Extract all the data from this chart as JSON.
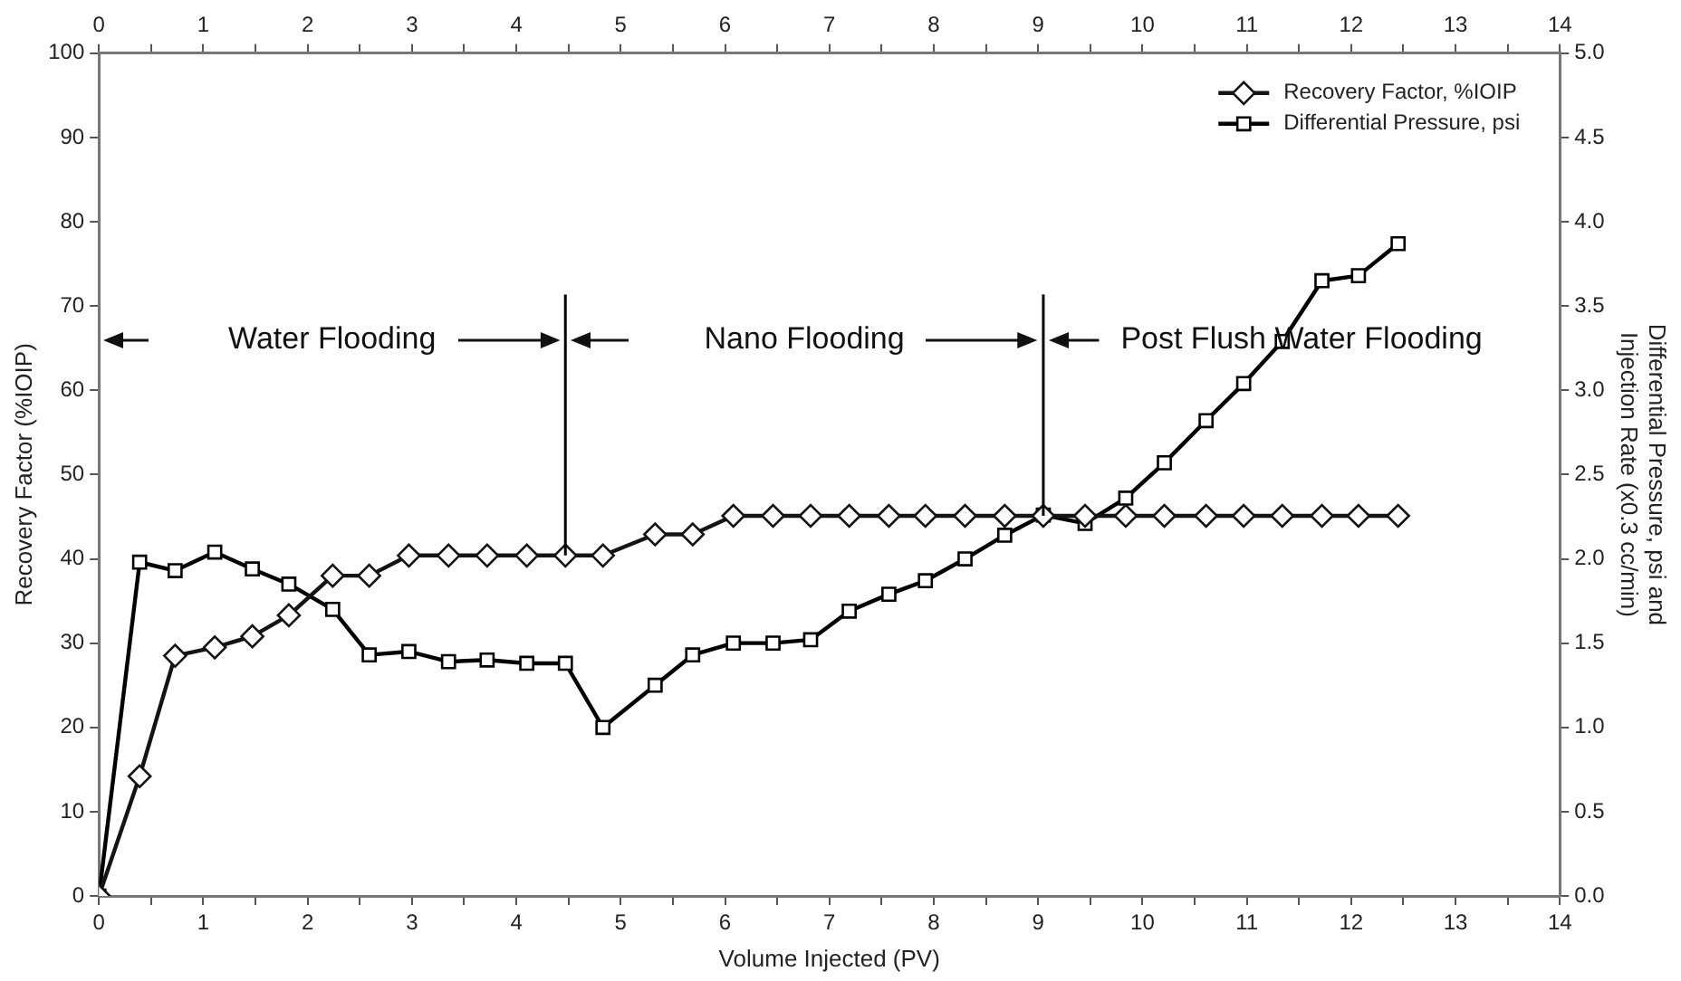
{
  "chart_data": {
    "type": "line",
    "xlabel": "Volume Injected (PV)",
    "ylabel": "Recovery Factor (%IOIP)",
    "y2label": "Differential Pressure, psi and\nInjection Rate (x0.3 cc/min)",
    "xlim": [
      0,
      14
    ],
    "xticks": [
      0,
      {
        "value": 0.5,
        "label": null
      },
      1,
      {
        "value": 1.5,
        "label": null
      },
      2,
      {
        "value": 2.5,
        "label": null
      },
      3,
      {
        "value": 3.5,
        "label": null
      },
      4,
      {
        "value": 4.5,
        "label": null
      },
      5,
      {
        "value": 5.5,
        "label": null
      },
      6,
      {
        "value": 6.5,
        "label": null
      },
      7,
      {
        "value": 7.5,
        "label": null
      },
      8,
      {
        "value": 8.5,
        "label": null
      },
      9,
      {
        "value": 9.5,
        "label": null
      },
      10,
      {
        "value": 10.5,
        "label": null
      },
      11,
      {
        "value": 11.5,
        "label": null
      },
      12,
      {
        "value": 12.5,
        "label": null
      },
      13,
      {
        "value": 13.5,
        "label": null
      },
      14
    ],
    "x2lim": [
      0,
      14
    ],
    "x2ticks": [
      0,
      {
        "value": 0.5,
        "label": null
      },
      1,
      {
        "value": 1.5,
        "label": null
      },
      2,
      {
        "value": 2.5,
        "label": null
      },
      3,
      {
        "value": 3.5,
        "label": null
      },
      4,
      {
        "value": 4.5,
        "label": null
      },
      5,
      {
        "value": 5.5,
        "label": null
      },
      6,
      {
        "value": 6.5,
        "label": null
      },
      7,
      {
        "value": 7.5,
        "label": null
      },
      8,
      {
        "value": 8.5,
        "label": null
      },
      9,
      {
        "value": 9.5,
        "label": null
      },
      10,
      {
        "value": 10.5,
        "label": null
      },
      11,
      {
        "value": 11.5,
        "label": null
      },
      12,
      {
        "value": 12.5,
        "label": null
      },
      13,
      {
        "value": 13.5,
        "label": null
      },
      14
    ],
    "ylim": [
      0,
      100
    ],
    "yticks": [
      0,
      10,
      20,
      30,
      40,
      50,
      60,
      70,
      80,
      90,
      100
    ],
    "y2lim": [
      0,
      5
    ],
    "y2ticks": [
      {
        "value": 0,
        "label": "0.0"
      },
      {
        "value": 0.5,
        "label": "0.5"
      },
      {
        "value": 1,
        "label": "1.0"
      },
      {
        "value": 1.5,
        "label": "1.5"
      },
      {
        "value": 2,
        "label": "2.0"
      },
      {
        "value": 2.5,
        "label": "2.5"
      },
      {
        "value": 3,
        "label": "3.0"
      },
      {
        "value": 3.5,
        "label": "3.5"
      },
      {
        "value": 4,
        "label": "4.0"
      },
      {
        "value": 4.5,
        "label": "4.5"
      },
      {
        "value": 5,
        "label": "5.0"
      }
    ],
    "x": [
      0,
      0.39,
      0.73,
      1.11,
      1.47,
      1.82,
      2.24,
      2.59,
      2.97,
      3.35,
      3.72,
      4.1,
      4.47,
      4.83,
      5.33,
      5.69,
      6.08,
      6.46,
      6.82,
      7.19,
      7.57,
      7.92,
      8.3,
      8.68,
      9.05,
      9.45,
      9.84,
      10.21,
      10.61,
      10.97,
      11.34,
      11.72,
      12.07,
      12.45
    ],
    "series": [
      {
        "name": "Recovery Factor, %IOIP",
        "color": "#141414",
        "marker": "diamond",
        "values": [
          0,
          14.2,
          28.5,
          29.5,
          30.8,
          33.3,
          38.0,
          38.0,
          40.4,
          40.4,
          40.4,
          40.4,
          40.4,
          40.4,
          42.9,
          42.9,
          45.1,
          45.1,
          45.1,
          45.1,
          45.1,
          45.1,
          45.1,
          45.1,
          45.1,
          45.1,
          45.1,
          45.1,
          45.1,
          45.1,
          45.1,
          45.1,
          45.1,
          45.1
        ]
      },
      {
        "name": "Differential Pressure, psi",
        "color": "#000000",
        "marker": "square",
        "axis": "y2",
        "values": [
          0,
          1.98,
          1.93,
          2.04,
          1.94,
          1.85,
          1.7,
          1.43,
          1.45,
          1.39,
          1.4,
          1.38,
          1.38,
          1.0,
          1.25,
          1.43,
          1.5,
          1.5,
          1.52,
          1.69,
          1.79,
          1.87,
          2.0,
          2.14,
          2.26,
          2.21,
          2.36,
          2.57,
          2.82,
          3.04,
          3.29,
          3.65,
          3.68,
          3.87
        ]
      }
    ],
    "ref_lines": [
      {
        "axis": "x",
        "value": 4.47
      },
      {
        "axis": "x",
        "value": 9.05
      }
    ],
    "annotations": [
      "Water Flooding",
      "Nano Flooding",
      "Post Flush Water Flooding"
    ],
    "legend": "top right",
    "grid": false,
    "line_style": "solid"
  }
}
